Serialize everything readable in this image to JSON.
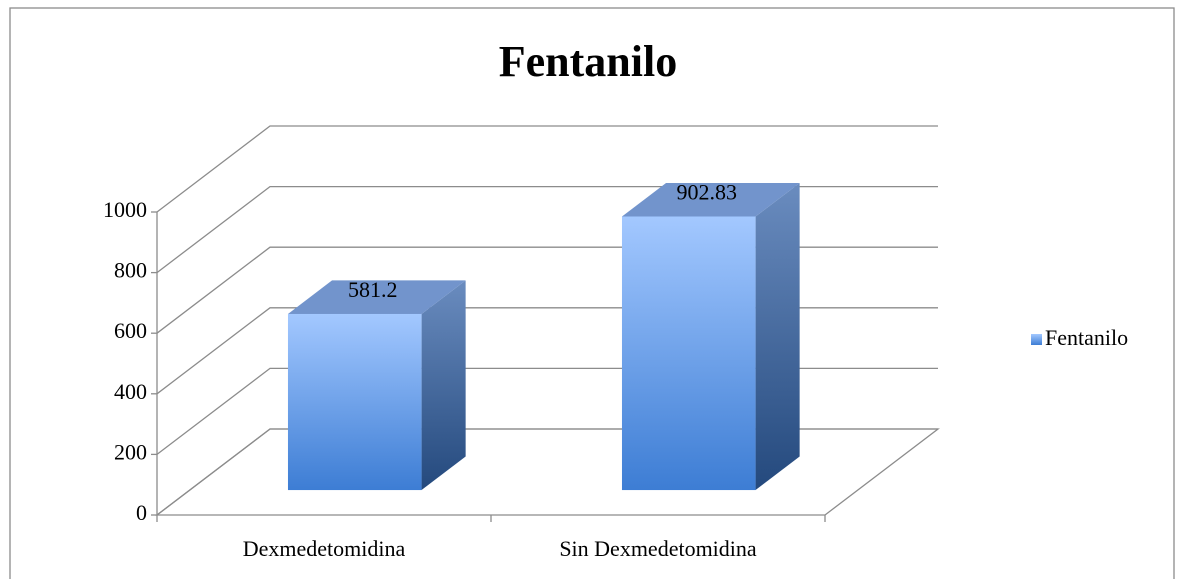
{
  "chart_data": {
    "type": "bar3d",
    "title": "Fentanilo",
    "categories": [
      "Dexmedetomidina",
      "Sin Dexmedetomidina"
    ],
    "series": [
      {
        "name": "Fentanilo",
        "color": "#4a86d8",
        "values": [
          581.2,
          902.83
        ]
      }
    ],
    "ylim": [
      0,
      1000
    ],
    "yticks": [
      0,
      200,
      400,
      600,
      800,
      1000
    ],
    "grid": true,
    "legend": "right"
  }
}
